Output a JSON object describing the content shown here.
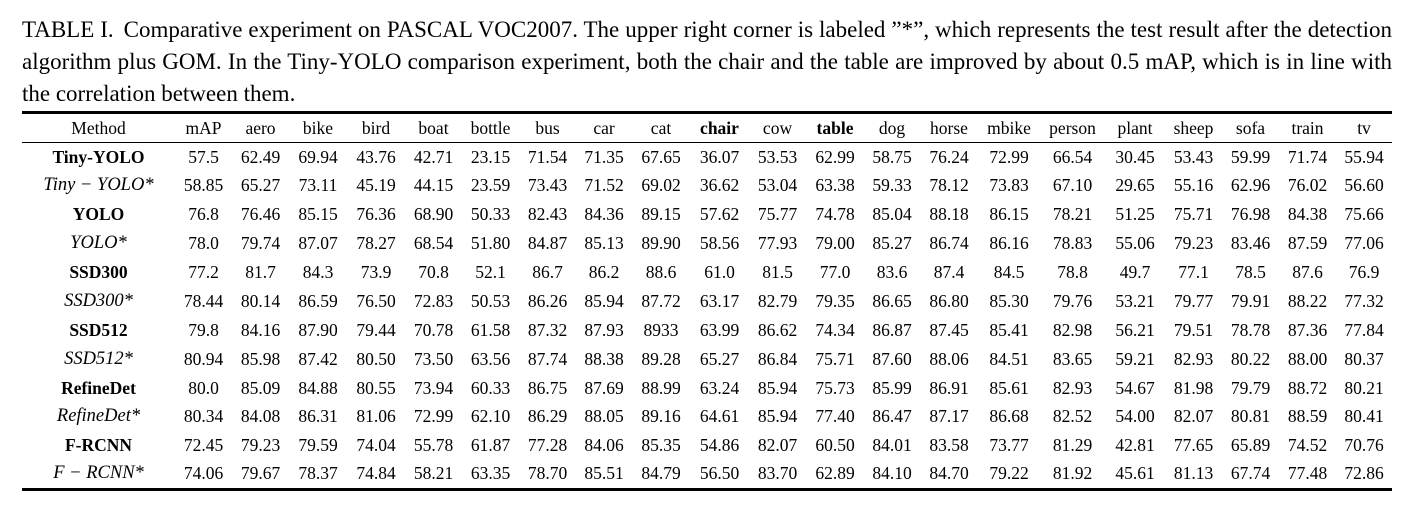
{
  "caption": {
    "label": "TABLE I.",
    "text": "Comparative experiment on PASCAL VOC2007. The upper right corner is labeled ”*”, which represents the test result after the detection algorithm plus GOM. In the Tiny-YOLO comparison experiment, both the chair and the table are improved by about 0.5 mAP, which is in line with the correlation between them."
  },
  "table": {
    "header": [
      "Method",
      "mAP",
      "aero",
      "bike",
      "bird",
      "boat",
      "bottle",
      "bus",
      "car",
      "cat",
      "chair",
      "cow",
      "table",
      "dog",
      "horse",
      "mbike",
      "person",
      "plant",
      "sheep",
      "sofa",
      "train",
      "tv"
    ],
    "rows": [
      [
        "Tiny-YOLO",
        "57.5",
        "62.49",
        "69.94",
        "43.76",
        "42.71",
        "23.15",
        "71.54",
        "71.35",
        "67.65",
        "36.07",
        "53.53",
        "62.99",
        "58.75",
        "76.24",
        "72.99",
        "66.54",
        "30.45",
        "53.43",
        "59.99",
        "71.74",
        "55.94"
      ],
      [
        "Tiny − YOLO*",
        "58.85",
        "65.27",
        "73.11",
        "45.19",
        "44.15",
        "23.59",
        "73.43",
        "71.52",
        "69.02",
        "36.62",
        "53.04",
        "63.38",
        "59.33",
        "78.12",
        "73.83",
        "67.10",
        "29.65",
        "55.16",
        "62.96",
        "76.02",
        "56.60"
      ],
      [
        "YOLO",
        "76.8",
        "76.46",
        "85.15",
        "76.36",
        "68.90",
        "50.33",
        "82.43",
        "84.36",
        "89.15",
        "57.62",
        "75.77",
        "74.78",
        "85.04",
        "88.18",
        "86.15",
        "78.21",
        "51.25",
        "75.71",
        "76.98",
        "84.38",
        "75.66"
      ],
      [
        "YOLO*",
        "78.0",
        "79.74",
        "87.07",
        "78.27",
        "68.54",
        "51.80",
        "84.87",
        "85.13",
        "89.90",
        "58.56",
        "77.93",
        "79.00",
        "85.27",
        "86.74",
        "86.16",
        "78.83",
        "55.06",
        "79.23",
        "83.46",
        "87.59",
        "77.06"
      ],
      [
        "SSD300",
        "77.2",
        "81.7",
        "84.3",
        "73.9",
        "70.8",
        "52.1",
        "86.7",
        "86.2",
        "88.6",
        "61.0",
        "81.5",
        "77.0",
        "83.6",
        "87.4",
        "84.5",
        "78.8",
        "49.7",
        "77.1",
        "78.5",
        "87.6",
        "76.9"
      ],
      [
        "SSD300*",
        "78.44",
        "80.14",
        "86.59",
        "76.50",
        "72.83",
        "50.53",
        "86.26",
        "85.94",
        "87.72",
        "63.17",
        "82.79",
        "79.35",
        "86.65",
        "86.80",
        "85.30",
        "79.76",
        "53.21",
        "79.77",
        "79.91",
        "88.22",
        "77.32"
      ],
      [
        "SSD512",
        "79.8",
        "84.16",
        "87.90",
        "79.44",
        "70.78",
        "61.58",
        "87.32",
        "87.93",
        "8933",
        "63.99",
        "86.62",
        "74.34",
        "86.87",
        "87.45",
        "85.41",
        "82.98",
        "56.21",
        "79.51",
        "78.78",
        "87.36",
        "77.84"
      ],
      [
        "SSD512*",
        "80.94",
        "85.98",
        "87.42",
        "80.50",
        "73.50",
        "63.56",
        "87.74",
        "88.38",
        "89.28",
        "65.27",
        "86.84",
        "75.71",
        "87.60",
        "88.06",
        "84.51",
        "83.65",
        "59.21",
        "82.93",
        "80.22",
        "88.00",
        "80.37"
      ],
      [
        "RefineDet",
        "80.0",
        "85.09",
        "84.88",
        "80.55",
        "73.94",
        "60.33",
        "86.75",
        "87.69",
        "88.99",
        "63.24",
        "85.94",
        "75.73",
        "85.99",
        "86.91",
        "85.61",
        "82.93",
        "54.67",
        "81.98",
        "79.79",
        "88.72",
        "80.21"
      ],
      [
        "RefineDet*",
        "80.34",
        "84.08",
        "86.31",
        "81.06",
        "72.99",
        "62.10",
        "86.29",
        "88.05",
        "89.16",
        "64.61",
        "85.94",
        "77.40",
        "86.47",
        "87.17",
        "86.68",
        "82.52",
        "54.00",
        "82.07",
        "80.81",
        "88.59",
        "80.41"
      ],
      [
        "F-RCNN",
        "72.45",
        "79.23",
        "79.59",
        "74.04",
        "55.78",
        "61.87",
        "77.28",
        "84.06",
        "85.35",
        "54.86",
        "82.07",
        "60.50",
        "84.01",
        "83.58",
        "73.77",
        "81.29",
        "42.81",
        "77.65",
        "65.89",
        "74.52",
        "70.76"
      ],
      [
        "F − RCNN*",
        "74.06",
        "79.67",
        "78.37",
        "74.84",
        "58.21",
        "63.35",
        "78.70",
        "85.51",
        "84.79",
        "56.50",
        "83.70",
        "62.89",
        "84.10",
        "84.70",
        "79.22",
        "81.92",
        "45.61",
        "81.13",
        "67.74",
        "77.48",
        "72.86"
      ]
    ]
  }
}
